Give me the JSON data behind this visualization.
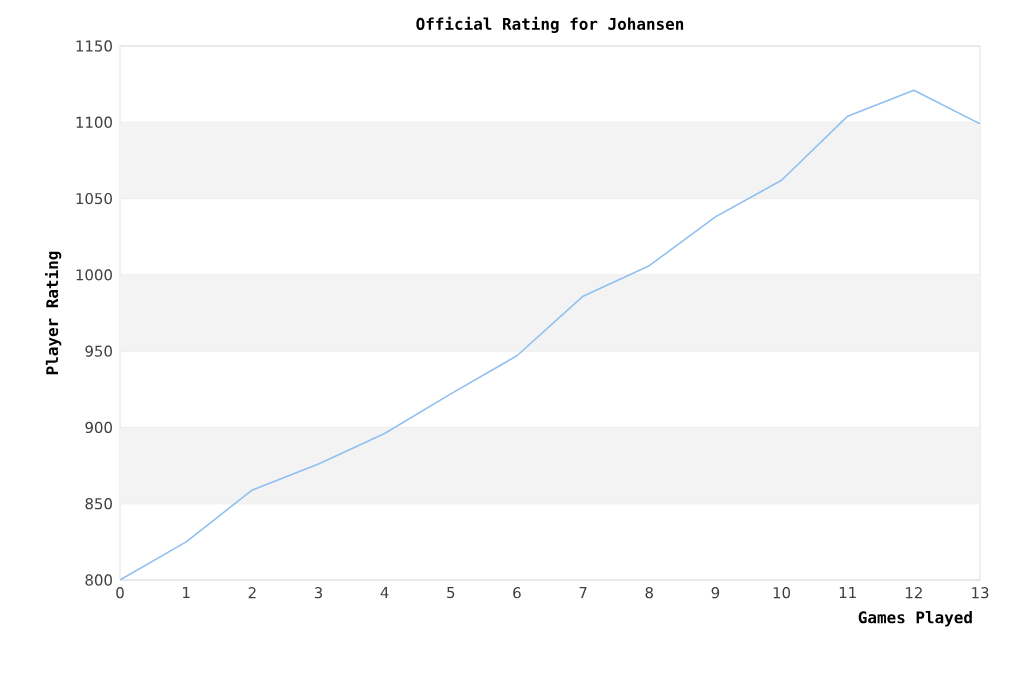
{
  "chart_data": {
    "type": "line",
    "title": "Official Rating for Johansen",
    "xlabel": "Games Played",
    "ylabel": "Player Rating",
    "x": [
      0,
      1,
      2,
      3,
      4,
      5,
      6,
      7,
      8,
      9,
      10,
      11,
      12,
      13
    ],
    "series": [
      {
        "color": "#90c0f0",
        "values": [
          800,
          825,
          859,
          876,
          896,
          922,
          947,
          986,
          1006,
          1038,
          1062,
          1104,
          1121,
          1099
        ]
      }
    ],
    "xlim": [
      0,
      13
    ],
    "xticks": [
      0,
      1,
      2,
      3,
      4,
      5,
      6,
      7,
      8,
      9,
      10,
      11,
      12,
      13
    ],
    "ylim": [
      800,
      1150
    ],
    "yticks": [
      800,
      850,
      900,
      950,
      1000,
      1050,
      1100,
      1150
    ],
    "bands": [
      {
        "axis": "y",
        "from": 850,
        "to": 900,
        "color": "#f3f3f3"
      },
      {
        "axis": "y",
        "from": 950,
        "to": 1000,
        "color": "#f3f3f3"
      },
      {
        "axis": "y",
        "from": 1050,
        "to": 1100,
        "color": "#f3f3f3"
      }
    ],
    "grid": "y",
    "marker": "none",
    "line_style": "solid"
  }
}
